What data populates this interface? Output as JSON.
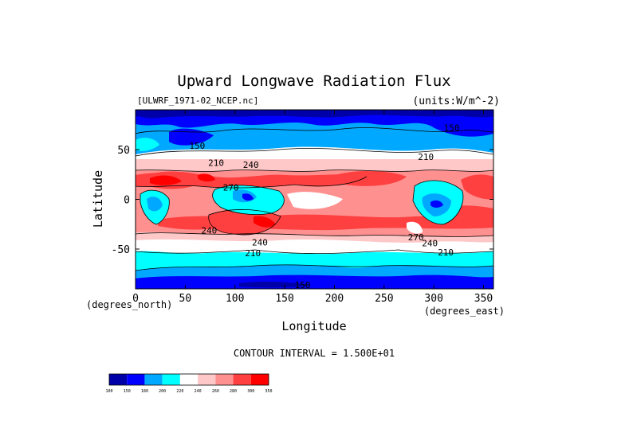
{
  "chart_data": {
    "type": "heatmap",
    "title": "Upward Longwave Radiation Flux",
    "subtitle_left": "[ULWRF_1971-02_NCEP.nc]",
    "subtitle_right": "(units:W/m^-2)",
    "xlabel": "Longitude",
    "ylabel": "Latitude",
    "x_unit_label": "(degrees_east)",
    "y_unit_label": "(degrees_north)",
    "xlim": [
      0,
      360
    ],
    "ylim": [
      -90,
      90
    ],
    "x_ticks": [
      0,
      50,
      100,
      150,
      200,
      250,
      300,
      350
    ],
    "y_ticks": [
      -50,
      0,
      50
    ],
    "contour_interval_text": "CONTOUR INTERVAL = 1.500E+01",
    "colorbar": {
      "levels": [
        100,
        150,
        180,
        200,
        220,
        240,
        260,
        280,
        300,
        350
      ],
      "colors": [
        "#0000a8",
        "#0000ff",
        "#00a8ff",
        "#00ffff",
        "#ffffff",
        "#ffc8c8",
        "#ff9090",
        "#ff4040",
        "#ff0000"
      ]
    },
    "contour_labels": [
      {
        "text": "150",
        "lon": 62,
        "lat": 54
      },
      {
        "text": "240",
        "lon": 116,
        "lat": 35
      },
      {
        "text": "210",
        "lon": 81,
        "lat": 37
      },
      {
        "text": "270",
        "lon": 96,
        "lat": 12
      },
      {
        "text": "240",
        "lon": 74,
        "lat": -31
      },
      {
        "text": "240",
        "lon": 125,
        "lat": -43
      },
      {
        "text": "210",
        "lon": 118,
        "lat": -54
      },
      {
        "text": "150",
        "lon": 168,
        "lat": -86
      },
      {
        "text": "210",
        "lon": 292,
        "lat": 43
      },
      {
        "text": "270",
        "lon": 282,
        "lat": -38
      },
      {
        "text": "240",
        "lon": 296,
        "lat": -44
      },
      {
        "text": "210",
        "lon": 312,
        "lat": -53
      },
      {
        "text": "150",
        "lon": 318,
        "lat": 72
      }
    ]
  }
}
